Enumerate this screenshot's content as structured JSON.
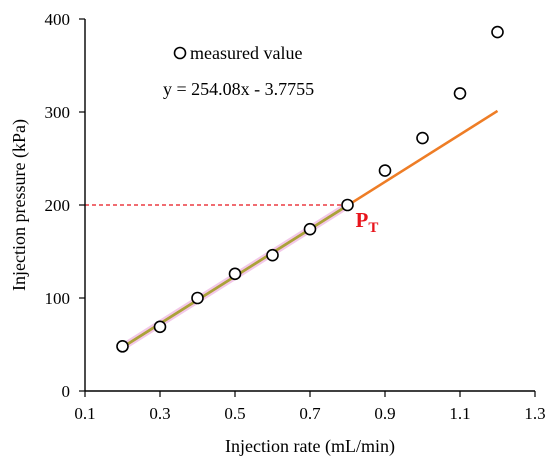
{
  "chart_data": {
    "type": "scatter",
    "xlabel": "Injection rate (mL/min)",
    "ylabel": "Injection pressure (kPa)",
    "xlim": [
      0.1,
      1.3
    ],
    "ylim": [
      0,
      400
    ],
    "x_ticks": [
      "0.1",
      "0.3",
      "0.5",
      "0.7",
      "0.9",
      "1.1",
      "1.3"
    ],
    "y_ticks": [
      "0",
      "100",
      "200",
      "300",
      "400"
    ],
    "x_tick_values": [
      0.1,
      0.3,
      0.5,
      0.7,
      0.9,
      1.1,
      1.3
    ],
    "y_tick_values": [
      0,
      100,
      200,
      300,
      400
    ],
    "grid": false,
    "legend": {
      "position": "top-left",
      "entries": [
        {
          "label": "measured value",
          "marker": "open-circle"
        }
      ]
    },
    "series": [
      {
        "name": "measured value",
        "kind": "scatter",
        "points": [
          {
            "x": 0.2,
            "y": 48
          },
          {
            "x": 0.3,
            "y": 69
          },
          {
            "x": 0.4,
            "y": 100
          },
          {
            "x": 0.5,
            "y": 126
          },
          {
            "x": 0.6,
            "y": 146
          },
          {
            "x": 0.7,
            "y": 174
          },
          {
            "x": 0.8,
            "y": 200
          },
          {
            "x": 0.9,
            "y": 237
          },
          {
            "x": 1.0,
            "y": 272
          },
          {
            "x": 1.1,
            "y": 320
          },
          {
            "x": 1.2,
            "y": 386
          }
        ]
      }
    ],
    "fit_line": {
      "equation": "y = 254.08x - 3.7755",
      "slope": 254.08,
      "intercept": -3.7755,
      "x_range": [
        0.2,
        1.2
      ],
      "highlight_x_range": [
        0.2,
        0.8
      ],
      "color": "#ee7d26",
      "highlight_color": "#a9a33a",
      "halo_color": "#f2c8e8"
    },
    "annotation": {
      "label_main": "P",
      "label_sub": "T",
      "x": 0.8,
      "y": 200,
      "color": "#e8141c",
      "reference_line": "dashed horizontal from y-axis"
    }
  }
}
